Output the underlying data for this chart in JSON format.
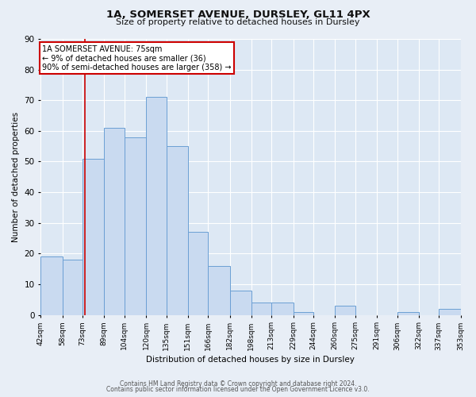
{
  "title1": "1A, SOMERSET AVENUE, DURSLEY, GL11 4PX",
  "title2": "Size of property relative to detached houses in Dursley",
  "xlabel": "Distribution of detached houses by size in Dursley",
  "ylabel": "Number of detached properties",
  "footer1": "Contains HM Land Registry data © Crown copyright and database right 2024.",
  "footer2": "Contains public sector information licensed under the Open Government Licence v3.0.",
  "bar_edges": [
    42,
    58,
    73,
    89,
    104,
    120,
    135,
    151,
    166,
    182,
    198,
    213,
    229,
    244,
    260,
    275,
    291,
    306,
    322,
    337,
    353
  ],
  "bar_heights": [
    19,
    18,
    51,
    61,
    58,
    71,
    55,
    27,
    16,
    8,
    4,
    4,
    1,
    0,
    3,
    0,
    0,
    1,
    0,
    2
  ],
  "bar_color": "#c9daf0",
  "bar_edge_color": "#6b9fd4",
  "tick_labels": [
    "42sqm",
    "58sqm",
    "73sqm",
    "89sqm",
    "104sqm",
    "120sqm",
    "135sqm",
    "151sqm",
    "166sqm",
    "182sqm",
    "198sqm",
    "213sqm",
    "229sqm",
    "244sqm",
    "260sqm",
    "275sqm",
    "291sqm",
    "306sqm",
    "322sqm",
    "337sqm",
    "353sqm"
  ],
  "property_line_x": 75,
  "annotation_line1": "1A SOMERSET AVENUE: 75sqm",
  "annotation_line2": "← 9% of detached houses are smaller (36)",
  "annotation_line3": "90% of semi-detached houses are larger (358) →",
  "annotation_box_color": "#cc0000",
  "ylim": [
    0,
    90
  ],
  "yticks": [
    0,
    10,
    20,
    30,
    40,
    50,
    60,
    70,
    80,
    90
  ],
  "bg_color": "#e8eef6",
  "plot_bg_color": "#dde8f4",
  "grid_color": "#ffffff",
  "title1_fontsize": 9.5,
  "title2_fontsize": 8.0,
  "ylabel_fontsize": 7.5,
  "xlabel_fontsize": 7.5,
  "ytick_fontsize": 7.5,
  "xtick_fontsize": 6.5,
  "annotation_fontsize": 7.0,
  "footer_fontsize": 5.5
}
